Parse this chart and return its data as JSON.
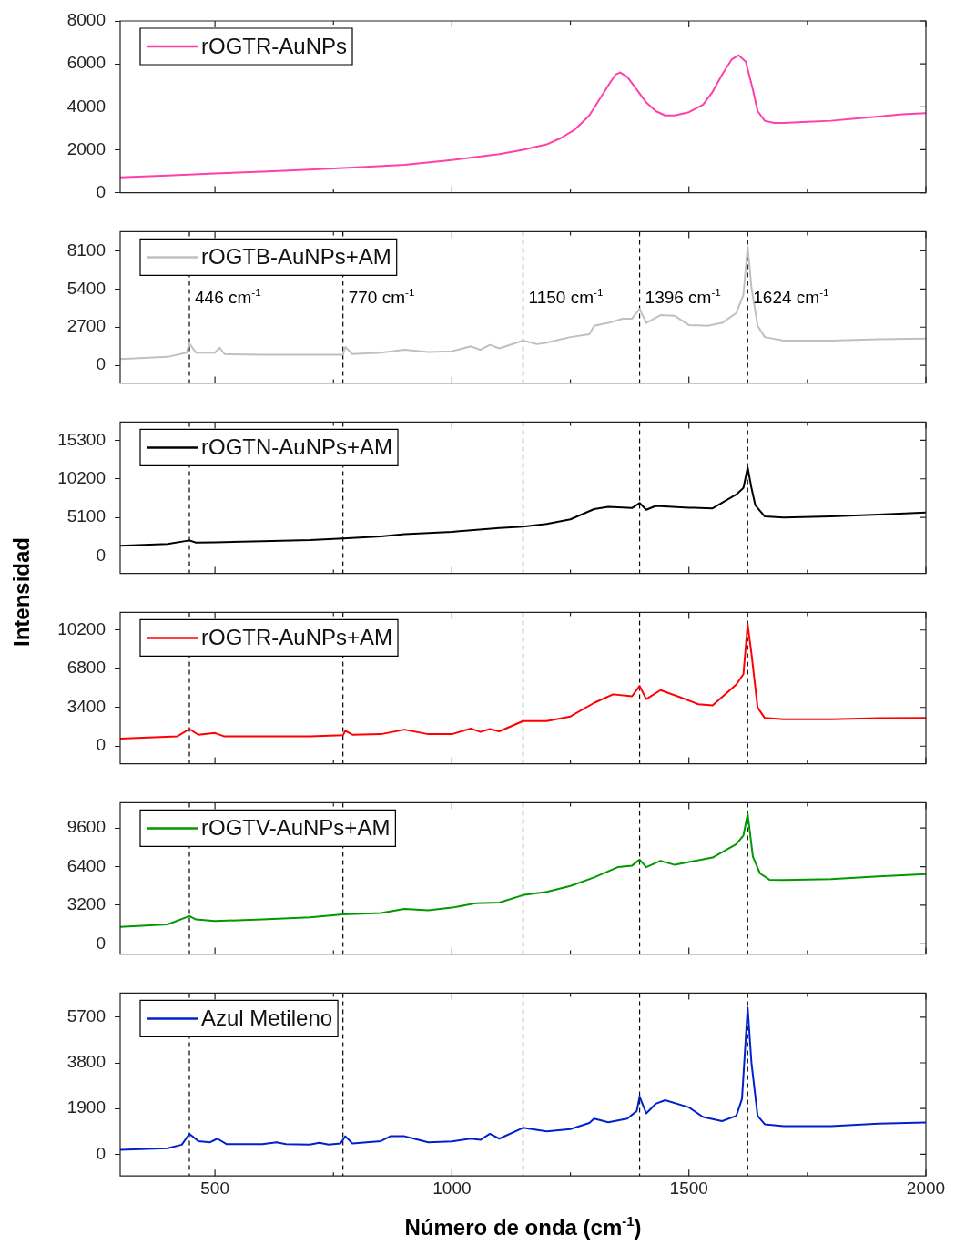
{
  "chart_data": [
    {
      "type": "line",
      "x": [
        300,
        400,
        500,
        600,
        700,
        800,
        900,
        1000,
        1100,
        1150,
        1200,
        1230,
        1260,
        1290,
        1310,
        1330,
        1345,
        1355,
        1370,
        1390,
        1410,
        1430,
        1450,
        1470,
        1500,
        1530,
        1550,
        1570,
        1590,
        1605,
        1620,
        1635,
        1645,
        1660,
        1680,
        1700,
        1750,
        1800,
        1850,
        1900,
        1950,
        2000
      ],
      "series": [
        {
          "name": "rOGTR-AuNPs",
          "color": "#ff40a8",
          "values": [
            720,
            800,
            900,
            980,
            1080,
            1180,
            1300,
            1520,
            1800,
            2000,
            2250,
            2550,
            2950,
            3600,
            4300,
            5000,
            5500,
            5600,
            5400,
            4800,
            4200,
            3800,
            3600,
            3600,
            3750,
            4100,
            4700,
            5500,
            6200,
            6400,
            6100,
            4800,
            3800,
            3350,
            3250,
            3250,
            3300,
            3350,
            3450,
            3550,
            3650,
            3700
          ]
        }
      ],
      "xlim": [
        300,
        2000
      ],
      "xticks": [
        500,
        {
          "value": 750,
          "label": null
        },
        1000,
        {
          "value": 1250,
          "label": null
        },
        1500,
        {
          "value": 1750,
          "label": null
        },
        2000
      ],
      "ylim": [
        0,
        8000
      ],
      "yticks": [
        0,
        2000,
        4000,
        6000,
        8000
      ],
      "tick_labels": "y",
      "legend": "top left",
      "marker": "none"
    },
    {
      "type": "line",
      "x": [
        300,
        400,
        440,
        446,
        460,
        500,
        510,
        520,
        600,
        700,
        770,
        775,
        790,
        850,
        900,
        950,
        1000,
        1040,
        1060,
        1080,
        1100,
        1150,
        1180,
        1200,
        1250,
        1290,
        1300,
        1330,
        1360,
        1380,
        1396,
        1410,
        1440,
        1470,
        1500,
        1540,
        1570,
        1600,
        1615,
        1624,
        1632,
        1645,
        1660,
        1700,
        1800,
        1900,
        2000
      ],
      "series": [
        {
          "name": "rOGTB-AuNPs+AM",
          "color": "#c0c0c0",
          "values": [
            450,
            600,
            900,
            1550,
            900,
            900,
            1250,
            800,
            750,
            750,
            750,
            1300,
            800,
            900,
            1100,
            950,
            1000,
            1350,
            1100,
            1450,
            1200,
            1750,
            1500,
            1600,
            2000,
            2200,
            2800,
            3000,
            3300,
            3300,
            4000,
            3000,
            3550,
            3500,
            2850,
            2800,
            3000,
            3700,
            5000,
            8400,
            5500,
            2800,
            2000,
            1750,
            1750,
            1850,
            1900
          ]
        }
      ],
      "xlim": [
        300,
        2000
      ],
      "xticks": [
        500,
        {
          "value": 750,
          "label": null
        },
        1000,
        {
          "value": 1250,
          "label": null
        },
        1500,
        {
          "value": 1750,
          "label": null
        },
        2000
      ],
      "ylim": [
        -1250,
        9450
      ],
      "yticks": [
        0,
        2700,
        5400,
        8100
      ],
      "tick_labels": "y",
      "legend": "top left",
      "marker": "none",
      "ref_lines": [
        {
          "axis": "x",
          "value": 446,
          "label": "446 cm$^{-1}$",
          "color": "#000000",
          "line_style": "dashed"
        },
        {
          "axis": "x",
          "value": 770,
          "label": "770 cm$^{-1}$",
          "color": "#000000",
          "line_style": "dashed"
        },
        {
          "axis": "x",
          "value": 1150,
          "label": "1150 cm$^{-1}$",
          "color": "#000000",
          "line_style": "dashed"
        },
        {
          "axis": "x",
          "value": 1396,
          "label": "1396 cm$^{-1}$",
          "color": "#000000",
          "line_style": "dashed"
        },
        {
          "axis": "x",
          "value": 1624,
          "label": "1624 cm$^{-1}$",
          "color": "#000000",
          "line_style": "dashed"
        }
      ]
    },
    {
      "type": "line",
      "x": [
        300,
        400,
        446,
        460,
        500,
        600,
        700,
        770,
        850,
        900,
        1000,
        1100,
        1150,
        1200,
        1250,
        1300,
        1330,
        1380,
        1396,
        1410,
        1430,
        1500,
        1550,
        1600,
        1615,
        1624,
        1632,
        1640,
        1660,
        1700,
        1800,
        1900,
        2000
      ],
      "series": [
        {
          "name": "rOGTN-AuNPs+AM",
          "color": "#000000",
          "values": [
            1360,
            1600,
            2060,
            1780,
            1800,
            1950,
            2100,
            2320,
            2600,
            2900,
            3200,
            3700,
            3870,
            4250,
            4840,
            6200,
            6500,
            6340,
            7000,
            6100,
            6620,
            6390,
            6290,
            8130,
            9000,
            11700,
            9000,
            6730,
            5230,
            5080,
            5230,
            5460,
            5740
          ]
        }
      ],
      "xlim": [
        300,
        2000
      ],
      "xticks": [
        500,
        {
          "value": 750,
          "label": null
        },
        1000,
        {
          "value": 1250,
          "label": null
        },
        1500,
        {
          "value": 1750,
          "label": null
        },
        2000
      ],
      "ylabel": "Intensidad",
      "ylim": [
        -2300,
        17700
      ],
      "yticks": [
        0,
        5100,
        10200,
        15300
      ],
      "tick_labels": "y",
      "legend": "top left",
      "marker": "none",
      "ref_lines": [
        {
          "axis": "x",
          "value": 446,
          "color": "#000000",
          "line_style": "dashed"
        },
        {
          "axis": "x",
          "value": 770,
          "color": "#000000",
          "line_style": "dashed"
        },
        {
          "axis": "x",
          "value": 1150,
          "color": "#000000",
          "line_style": "dashed"
        },
        {
          "axis": "x",
          "value": 1396,
          "color": "#000000",
          "line_style": "dashed"
        },
        {
          "axis": "x",
          "value": 1624,
          "color": "#000000",
          "line_style": "dashed"
        }
      ]
    },
    {
      "type": "line",
      "x": [
        300,
        420,
        446,
        465,
        500,
        520,
        600,
        700,
        770,
        775,
        790,
        850,
        900,
        950,
        1000,
        1040,
        1060,
        1080,
        1100,
        1150,
        1200,
        1250,
        1300,
        1340,
        1380,
        1396,
        1410,
        1440,
        1480,
        1520,
        1550,
        1600,
        1615,
        1624,
        1632,
        1645,
        1660,
        1700,
        1800,
        1900,
        2000
      ],
      "series": [
        {
          "name": "rOGTR-AuNPs+AM",
          "color": "#ff0000",
          "values": [
            650,
            850,
            1500,
            1000,
            1150,
            850,
            850,
            850,
            950,
            1350,
            1000,
            1050,
            1450,
            1050,
            1050,
            1550,
            1250,
            1500,
            1300,
            2200,
            2200,
            2600,
            3800,
            4550,
            4380,
            5290,
            4130,
            4920,
            4320,
            3680,
            3570,
            5420,
            6320,
            10700,
            8140,
            3390,
            2470,
            2360,
            2360,
            2450,
            2470
          ]
        }
      ],
      "xlim": [
        300,
        2000
      ],
      "xticks": [
        500,
        {
          "value": 750,
          "label": null
        },
        1000,
        {
          "value": 1250,
          "label": null
        },
        1500,
        {
          "value": 1750,
          "label": null
        },
        2000
      ],
      "ylim": [
        -1550,
        11750
      ],
      "yticks": [
        0,
        3400,
        6800,
        10200
      ],
      "tick_labels": "y",
      "legend": "top left",
      "marker": "none",
      "ref_lines": [
        {
          "axis": "x",
          "value": 446,
          "color": "#000000",
          "line_style": "dashed"
        },
        {
          "axis": "x",
          "value": 770,
          "color": "#000000",
          "line_style": "dashed"
        },
        {
          "axis": "x",
          "value": 1150,
          "color": "#000000",
          "line_style": "dashed"
        },
        {
          "axis": "x",
          "value": 1396,
          "color": "#000000",
          "line_style": "dashed"
        },
        {
          "axis": "x",
          "value": 1624,
          "color": "#000000",
          "line_style": "dashed"
        }
      ]
    },
    {
      "type": "line",
      "x": [
        300,
        400,
        446,
        460,
        500,
        600,
        700,
        770,
        850,
        900,
        950,
        1000,
        1050,
        1100,
        1150,
        1200,
        1250,
        1300,
        1350,
        1380,
        1396,
        1410,
        1440,
        1470,
        1500,
        1550,
        1600,
        1615,
        1624,
        1635,
        1650,
        1670,
        1700,
        1800,
        1900,
        2000
      ],
      "series": [
        {
          "name": "rOGTV-AuNPs+AM",
          "color": "#009900",
          "values": [
            1410,
            1610,
            2300,
            2020,
            1900,
            2020,
            2200,
            2450,
            2550,
            2900,
            2790,
            3000,
            3360,
            3430,
            4040,
            4310,
            4800,
            5510,
            6360,
            6490,
            6980,
            6360,
            6890,
            6550,
            6790,
            7160,
            8270,
            8990,
            10770,
            7220,
            5840,
            5320,
            5290,
            5360,
            5600,
            5780
          ]
        }
      ],
      "xlim": [
        300,
        2000
      ],
      "xticks": [
        500,
        {
          "value": 750,
          "label": null
        },
        1000,
        {
          "value": 1250,
          "label": null
        },
        1500,
        {
          "value": 1750,
          "label": null
        },
        2000
      ],
      "ylim": [
        -850,
        11700
      ],
      "yticks": [
        0,
        3200,
        6400,
        9600
      ],
      "tick_labels": "y",
      "legend": "top left",
      "marker": "none",
      "ref_lines": [
        {
          "axis": "x",
          "value": 446,
          "color": "#000000",
          "line_style": "dashed"
        },
        {
          "axis": "x",
          "value": 770,
          "color": "#000000",
          "line_style": "dashed"
        },
        {
          "axis": "x",
          "value": 1150,
          "color": "#000000",
          "line_style": "dashed"
        },
        {
          "axis": "x",
          "value": 1396,
          "color": "#000000",
          "line_style": "dashed"
        },
        {
          "axis": "x",
          "value": 1624,
          "color": "#000000",
          "line_style": "dashed"
        }
      ]
    },
    {
      "type": "line",
      "x": [
        300,
        400,
        430,
        446,
        465,
        490,
        505,
        525,
        600,
        630,
        650,
        700,
        720,
        740,
        765,
        775,
        790,
        850,
        870,
        900,
        920,
        950,
        1000,
        1040,
        1060,
        1080,
        1100,
        1150,
        1200,
        1250,
        1290,
        1300,
        1330,
        1370,
        1390,
        1396,
        1410,
        1430,
        1450,
        1500,
        1530,
        1570,
        1600,
        1612,
        1624,
        1632,
        1645,
        1660,
        1700,
        1800,
        1900,
        2000
      ],
      "series": [
        {
          "name": "Azul Metileno",
          "color": "#0022cc",
          "values": [
            190,
            250,
            400,
            850,
            550,
            500,
            650,
            420,
            420,
            500,
            420,
            400,
            480,
            400,
            450,
            750,
            450,
            550,
            750,
            750,
            650,
            500,
            540,
            650,
            600,
            850,
            650,
            1100,
            950,
            1050,
            1300,
            1480,
            1330,
            1480,
            1800,
            2400,
            1700,
            2100,
            2250,
            1950,
            1550,
            1380,
            1600,
            2300,
            6100,
            3800,
            1600,
            1250,
            1170,
            1170,
            1270,
            1320
          ]
        }
      ],
      "xlim": [
        300,
        2000
      ],
      "xticks": [
        500,
        {
          "value": 750,
          "label": null
        },
        1000,
        {
          "value": 1250,
          "label": null
        },
        1500,
        {
          "value": 1750,
          "label": null
        },
        2000
      ],
      "xlabel": "Número de onda (cm$^{-1}$)",
      "ylim": [
        -900,
        6700
      ],
      "yticks": [
        0,
        1900,
        3800,
        5700
      ],
      "legend": "top left",
      "marker": "none",
      "ref_lines": [
        {
          "axis": "x",
          "value": 446,
          "color": "#000000",
          "line_style": "dashed"
        },
        {
          "axis": "x",
          "value": 770,
          "color": "#000000",
          "line_style": "dashed"
        },
        {
          "axis": "x",
          "value": 1150,
          "color": "#000000",
          "line_style": "dashed"
        },
        {
          "axis": "x",
          "value": 1396,
          "color": "#000000",
          "line_style": "dashed"
        },
        {
          "axis": "x",
          "value": 1624,
          "color": "#000000",
          "line_style": "dashed"
        }
      ]
    }
  ]
}
